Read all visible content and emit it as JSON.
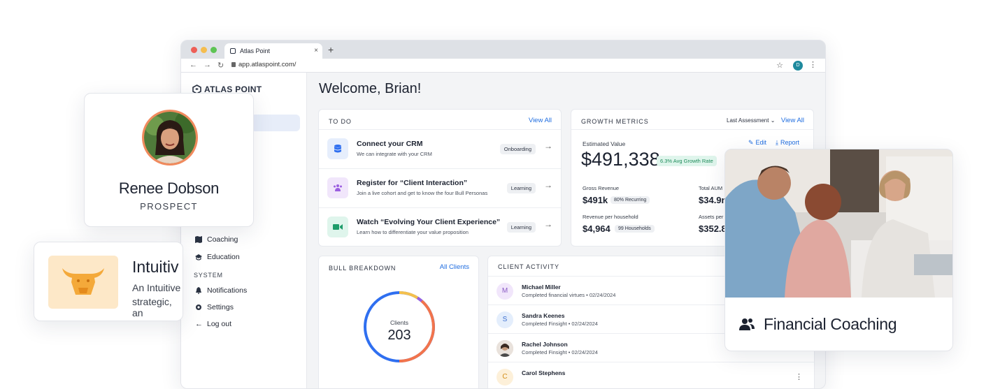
{
  "browser": {
    "tab_title": "Atlas Point",
    "tab_close": "×",
    "new_tab": "+",
    "url": "app.atlaspoint.com/",
    "profile_initial": "D",
    "back": "←",
    "forward": "→",
    "reload": "↻",
    "star": "☆",
    "menu": "⋮"
  },
  "sidebar": {
    "logo": "ATLAS POINT",
    "items": [
      {
        "label": "Coaching",
        "icon": "map-icon"
      },
      {
        "label": "Education",
        "icon": "graduation-cap-icon"
      }
    ],
    "system_heading": "SYSTEM",
    "system_items": [
      {
        "label": "Notifications",
        "icon": "bell-icon"
      },
      {
        "label": "Settings",
        "icon": "gear-icon"
      },
      {
        "label": "Log out",
        "icon": "arrow-left-icon"
      }
    ]
  },
  "main": {
    "welcome": "Welcome, Brian!",
    "todo": {
      "title": "TO DO",
      "view_all": "View All",
      "items": [
        {
          "title": "Connect your CRM",
          "subtitle": "We can integrate with your CRM",
          "tag": "Onboarding",
          "icon": "database-icon"
        },
        {
          "title": "Register for “Client Interaction”",
          "subtitle": "Join a live cohort and get to know the four Bull Personas",
          "tag": "Learning",
          "icon": "people-group-icon"
        },
        {
          "title": "Watch “Evolving Your Client Experience”",
          "subtitle": "Learn how to differentiate your value proposition",
          "tag": "Learning",
          "icon": "video-icon"
        }
      ]
    },
    "growth": {
      "title": "GROWTH METRICS",
      "assessment": "Last Assessment",
      "view_all": "View All",
      "estimated_label": "Estimated Value",
      "edit": "Edit",
      "report": "Report",
      "estimated_value": "$491,338",
      "growth_badge": "6.3% Avg Growth Rate",
      "gross_revenue_label": "Gross Revenue",
      "gross_revenue": "$491k",
      "recurring": "80% Recurring",
      "total_aum_label": "Total AUM",
      "total_aum": "$34.9n",
      "rev_per_household_label": "Revenue per household",
      "rev_per_household": "$4,964",
      "households": "99 Households",
      "assets_per_label": "Assets per",
      "assets_per": "$352.8"
    },
    "bull": {
      "title": "BULL BREAKDOWN",
      "all_clients": "All Clients",
      "clients_label": "Clients",
      "clients_count": "203"
    },
    "activity": {
      "title": "CLIENT ACTIVITY",
      "rows": [
        {
          "initial": "M",
          "name": "Michael Miller",
          "detail": "Completed financial virtues • 02/24/2024",
          "bg": "#f1e6fb",
          "fg": "#8a5bc4"
        },
        {
          "initial": "S",
          "name": "Sandra Keenes",
          "detail": "Completed Finsight • 02/24/2024",
          "bg": "#e4eefc",
          "fg": "#3d6fd0"
        },
        {
          "initial": "",
          "name": "Rachel Johnson",
          "detail": "Completed Finsight • 02/24/2024",
          "bg": "#d8c2b3",
          "fg": "#fff"
        },
        {
          "initial": "C",
          "name": "Carol Stephens",
          "detail": "",
          "bg": "#fdf0d9",
          "fg": "#d38f1a"
        }
      ]
    }
  },
  "profile_card": {
    "name": "Renee Dobson",
    "role": "PROSPECT"
  },
  "persona_card": {
    "title": "Intuitiv",
    "line1": "An Intuitive",
    "line2": "strategic, an"
  },
  "coaching_card": {
    "label": "Financial Coaching"
  },
  "colors": {
    "accent": "#1f6de0",
    "ring_blue": "#2f6ff0",
    "ring_orange": "#f2744c",
    "ring_yellow": "#f4c04d",
    "ring_purple": "#9b5ee0",
    "growth_badge_bg": "#dff5ec",
    "growth_badge_fg": "#1e8c5a"
  }
}
